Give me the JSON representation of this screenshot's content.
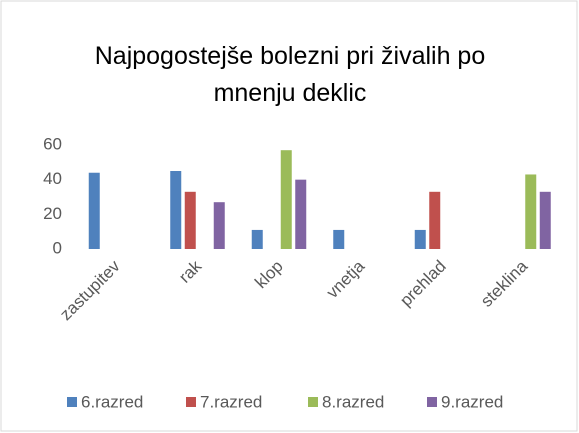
{
  "chart_data": {
    "type": "bar",
    "title": "Najpogostejše bolezni pri živalih po mnenju deklic",
    "categories": [
      "zastupitev",
      "rak",
      "klop",
      "vnetja",
      "prehlad",
      "steklina"
    ],
    "series": [
      {
        "name": "6.razred",
        "color": "#4f81bd",
        "values": [
          44,
          45,
          11,
          11,
          11,
          0
        ]
      },
      {
        "name": "7.razred",
        "color": "#c0504d",
        "values": [
          0,
          33,
          0,
          0,
          33,
          0
        ]
      },
      {
        "name": "8.razred",
        "color": "#9bbb59",
        "values": [
          0,
          0,
          57,
          0,
          0,
          43
        ]
      },
      {
        "name": "9.razred",
        "color": "#8064a2",
        "values": [
          0,
          27,
          40,
          0,
          0,
          33
        ]
      }
    ],
    "ylim": [
      0,
      60
    ],
    "yticks": [
      0,
      20,
      40,
      60
    ],
    "grid": false,
    "legend": "bottom"
  }
}
